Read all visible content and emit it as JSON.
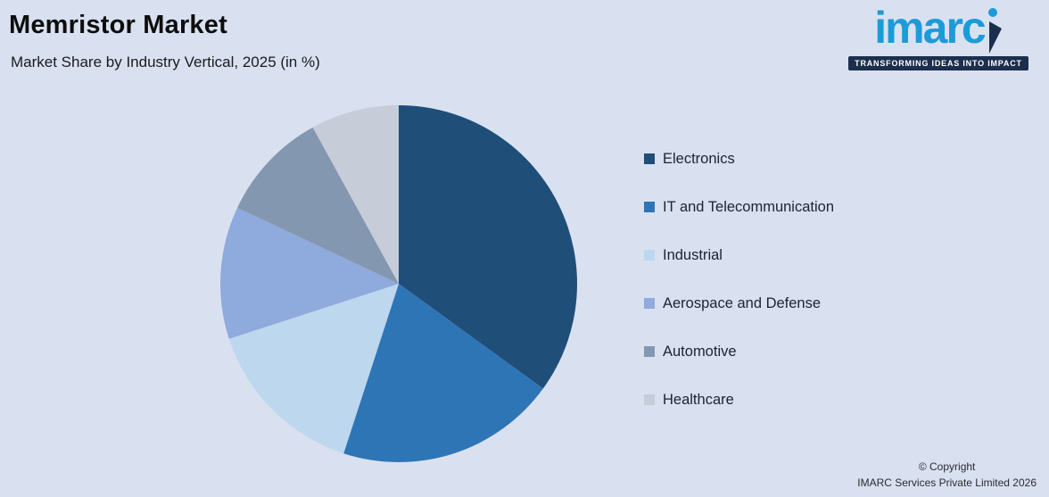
{
  "header": {
    "title": "Memristor Market",
    "subtitle": "Market Share by Industry Vertical, 2025 (in %)"
  },
  "logo": {
    "name": "imarc",
    "tagline": "TRANSFORMING IDEAS INTO IMPACT",
    "accent_color": "#1b9cd8",
    "bar_color": "#1c2e4d"
  },
  "footer": {
    "line1": "© Copyright",
    "line2": "IMARC Services Private Limited 2026"
  },
  "chart_data": {
    "type": "pie",
    "title": "Memristor Market",
    "subtitle": "Market Share by Industry Vertical, 2025 (in %)",
    "unit": "%",
    "categories": [
      "Electronics",
      "IT and Telecommunication",
      "Industrial",
      "Aerospace and Defense",
      "Automotive",
      "Healthcare"
    ],
    "values": [
      35,
      20,
      15,
      12,
      10,
      8
    ],
    "colors": [
      "#1f4e79",
      "#2e75b6",
      "#bdd7ee",
      "#8faadc",
      "#8497b0",
      "#c6ccd8"
    ],
    "start_angle_deg": 0,
    "direction": "clockwise",
    "legend_position": "right",
    "data_labels": false,
    "background_color": "#d9e1f1"
  }
}
